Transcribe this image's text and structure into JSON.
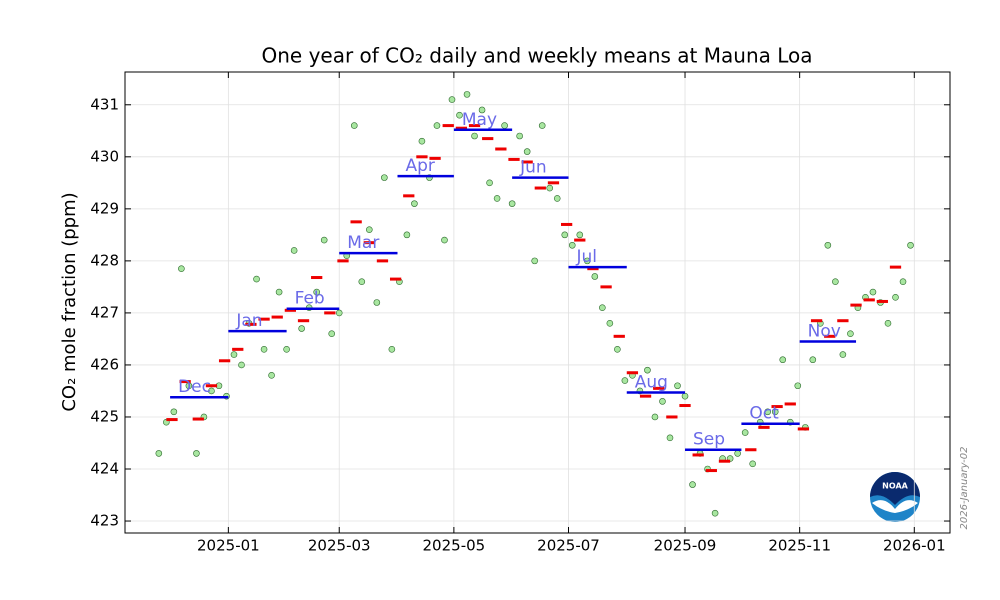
{
  "chart_data": {
    "type": "co2-means",
    "title": "One year of CO₂ daily and weekly means at Mauna Loa",
    "y_label": "CO₂ mole fraction (ppm)",
    "date_stamp": "2026-January-02",
    "logo_text": "NOAA",
    "xlim": [
      "2024-11-07",
      "2026-01-20"
    ],
    "xticks": [
      "2025-01",
      "2025-03",
      "2025-05",
      "2025-07",
      "2025-09",
      "2025-11",
      "2026-01"
    ],
    "ylim": [
      422.77,
      431.63
    ],
    "yticks": [
      423,
      424,
      425,
      426,
      427,
      428,
      429,
      430,
      431
    ],
    "grid": true,
    "daily": {
      "color": "#a8e6a0",
      "edge_color": "#2d6a2d",
      "x": [
        "2024-11-25",
        "2024-11-29",
        "2024-12-03",
        "2024-12-07",
        "2024-12-11",
        "2024-12-15",
        "2024-12-19",
        "2024-12-23",
        "2024-12-27",
        "2024-12-31",
        "2025-01-04",
        "2025-01-08",
        "2025-01-12",
        "2025-01-16",
        "2025-01-20",
        "2025-01-24",
        "2025-01-28",
        "2025-02-01",
        "2025-02-05",
        "2025-02-09",
        "2025-02-13",
        "2025-02-17",
        "2025-02-21",
        "2025-02-25",
        "2025-03-01",
        "2025-03-05",
        "2025-03-09",
        "2025-03-13",
        "2025-03-17",
        "2025-03-21",
        "2025-03-25",
        "2025-03-29",
        "2025-04-02",
        "2025-04-06",
        "2025-04-10",
        "2025-04-14",
        "2025-04-18",
        "2025-04-22",
        "2025-04-26",
        "2025-04-30",
        "2025-05-04",
        "2025-05-08",
        "2025-05-12",
        "2025-05-16",
        "2025-05-20",
        "2025-05-24",
        "2025-05-28",
        "2025-06-01",
        "2025-06-05",
        "2025-06-09",
        "2025-06-13",
        "2025-06-17",
        "2025-06-21",
        "2025-06-25",
        "2025-06-29",
        "2025-07-03",
        "2025-07-07",
        "2025-07-11",
        "2025-07-15",
        "2025-07-19",
        "2025-07-23",
        "2025-07-27",
        "2025-07-31",
        "2025-08-04",
        "2025-08-08",
        "2025-08-12",
        "2025-08-16",
        "2025-08-20",
        "2025-08-24",
        "2025-08-28",
        "2025-09-01",
        "2025-09-05",
        "2025-09-09",
        "2025-09-13",
        "2025-09-17",
        "2025-09-21",
        "2025-09-25",
        "2025-09-29",
        "2025-10-03",
        "2025-10-07",
        "2025-10-11",
        "2025-10-15",
        "2025-10-19",
        "2025-10-23",
        "2025-10-27",
        "2025-10-31",
        "2025-11-04",
        "2025-11-08",
        "2025-11-12",
        "2025-11-16",
        "2025-11-20",
        "2025-11-24",
        "2025-11-28",
        "2025-12-02",
        "2025-12-06",
        "2025-12-10",
        "2025-12-14",
        "2025-12-18",
        "2025-12-22",
        "2025-12-26",
        "2025-12-30"
      ],
      "values": [
        424.3,
        424.9,
        425.1,
        427.85,
        425.6,
        424.3,
        425.0,
        425.5,
        425.6,
        425.4,
        426.2,
        426.0,
        426.8,
        427.65,
        426.3,
        425.8,
        427.4,
        426.3,
        428.2,
        426.7,
        427.1,
        427.4,
        428.4,
        426.6,
        427.0,
        428.1,
        430.6,
        427.6,
        428.6,
        427.2,
        429.6,
        426.3,
        427.6,
        428.5,
        429.1,
        430.3,
        429.6,
        430.6,
        428.4,
        431.1,
        430.8,
        431.2,
        430.4,
        430.9,
        429.5,
        429.2,
        430.6,
        429.1,
        430.4,
        430.1,
        428.0,
        430.6,
        429.4,
        429.2,
        428.5,
        428.3,
        428.5,
        428.0,
        427.7,
        427.1,
        426.8,
        426.3,
        425.7,
        425.8,
        425.5,
        425.9,
        425.0,
        425.3,
        424.6,
        425.6,
        425.4,
        423.7,
        424.3,
        424.0,
        423.15,
        424.2,
        424.2,
        424.3,
        424.7,
        424.1,
        424.9,
        425.1,
        425.1,
        426.1,
        424.9,
        425.6,
        424.8,
        426.1,
        426.8,
        428.3,
        427.6,
        426.2,
        426.6,
        427.1,
        427.3,
        427.4,
        427.2,
        426.8,
        427.3,
        427.6,
        428.3
      ]
    },
    "weekly": {
      "color": "#ee0000",
      "x": [
        "2024-12-02",
        "2024-12-09",
        "2024-12-16",
        "2024-12-23",
        "2024-12-30",
        "2025-01-06",
        "2025-01-13",
        "2025-01-20",
        "2025-01-27",
        "2025-02-03",
        "2025-02-10",
        "2025-02-17",
        "2025-02-24",
        "2025-03-03",
        "2025-03-10",
        "2025-03-17",
        "2025-03-24",
        "2025-03-31",
        "2025-04-07",
        "2025-04-14",
        "2025-04-21",
        "2025-04-28",
        "2025-05-05",
        "2025-05-12",
        "2025-05-19",
        "2025-05-26",
        "2025-06-02",
        "2025-06-09",
        "2025-06-16",
        "2025-06-23",
        "2025-06-30",
        "2025-07-07",
        "2025-07-14",
        "2025-07-21",
        "2025-07-28",
        "2025-08-04",
        "2025-08-11",
        "2025-08-18",
        "2025-08-25",
        "2025-09-01",
        "2025-09-08",
        "2025-09-15",
        "2025-09-22",
        "2025-10-06",
        "2025-10-13",
        "2025-10-20",
        "2025-10-27",
        "2025-11-03",
        "2025-11-10",
        "2025-11-17",
        "2025-11-24",
        "2025-12-01",
        "2025-12-08",
        "2025-12-15",
        "2025-12-22"
      ],
      "values": [
        424.95,
        425.68,
        424.96,
        425.6,
        426.08,
        426.3,
        426.78,
        426.88,
        426.92,
        427.05,
        426.85,
        427.68,
        427.0,
        428.0,
        428.75,
        428.35,
        428.0,
        427.65,
        429.25,
        430.0,
        429.97,
        430.6,
        430.55,
        430.6,
        430.35,
        430.15,
        429.95,
        429.9,
        429.4,
        429.5,
        428.7,
        428.4,
        427.85,
        427.5,
        426.55,
        425.85,
        425.4,
        425.55,
        425.0,
        425.22,
        424.27,
        423.97,
        424.15,
        424.37,
        424.8,
        425.2,
        425.25,
        424.77,
        426.85,
        426.55,
        426.85,
        427.15,
        427.25,
        427.22,
        427.88
      ]
    },
    "monthly": {
      "color": "#0000dd",
      "label_color": "#6a6ae8",
      "categories": [
        "Dec",
        "Jan",
        "Feb",
        "Mar",
        "Apr",
        "May",
        "Jun",
        "Jul",
        "Aug",
        "Sep",
        "Oct",
        "Nov"
      ],
      "x": [
        "2024-12",
        "2025-01",
        "2025-02",
        "2025-03",
        "2025-04",
        "2025-05",
        "2025-06",
        "2025-07",
        "2025-08",
        "2025-09",
        "2025-10",
        "2025-11"
      ],
      "values": [
        425.38,
        426.65,
        427.08,
        428.15,
        429.63,
        430.52,
        429.6,
        427.88,
        425.47,
        424.37,
        424.87,
        426.45
      ]
    }
  }
}
